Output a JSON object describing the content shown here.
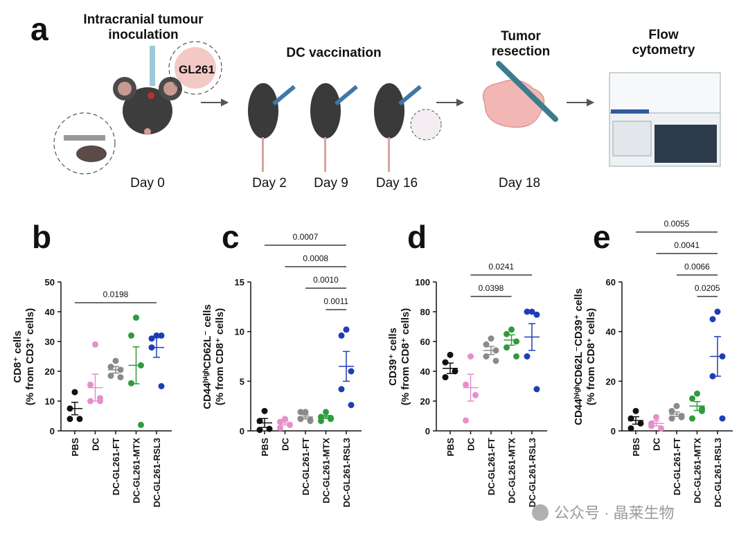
{
  "panel_a": {
    "letter": "a",
    "cell_line": "GL261",
    "steps": [
      {
        "title": [
          "Intracranial tumour",
          "inoculation"
        ],
        "days": [
          "Day 0"
        ]
      },
      {
        "title": [
          "DC vaccination"
        ],
        "days": [
          "Day 2",
          "Day 9",
          "Day 16"
        ]
      },
      {
        "title": [
          "Tumor",
          "resection"
        ],
        "days": [
          "Day 18"
        ]
      },
      {
        "title": [
          "Flow",
          "cytometry"
        ]
      }
    ]
  },
  "chart_data": [
    {
      "type": "scatter",
      "letter": "b",
      "ylabel": [
        "CD8⁺ cells",
        "(% from CD3⁺ cells)"
      ],
      "ylim": [
        0,
        50
      ],
      "yticks": [
        0,
        10,
        20,
        30,
        40,
        50
      ],
      "series": [
        {
          "name": "PBS",
          "color": "#111111",
          "values": [
            13,
            7.5,
            4,
            4
          ],
          "mean": 7.5,
          "sem": 2.1
        },
        {
          "name": "DC",
          "color": "#e68fca",
          "values": [
            29,
            15.5,
            11,
            10,
            10
          ],
          "mean": 14.5,
          "sem": 4.5
        },
        {
          "name": "DC-GL261-FT",
          "color": "#8a8a8a",
          "values": [
            23.5,
            21.5,
            20.5,
            18.5,
            18
          ],
          "mean": 20.5,
          "sem": 1.1
        },
        {
          "name": "DC-GL261-MTX",
          "color": "#2e9b3c",
          "values": [
            38,
            32,
            22,
            16,
            2
          ],
          "mean": 22,
          "sem": 6.2
        },
        {
          "name": "DC-GL261-RSL3",
          "color": "#1f3db5",
          "values": [
            32,
            31,
            32,
            28,
            15
          ],
          "mean": 28,
          "sem": 3.3
        }
      ],
      "comparisons": [
        {
          "label": "0.0198",
          "between": [
            "PBS",
            "DC-GL261-RSL3"
          ]
        }
      ]
    },
    {
      "type": "scatter",
      "letter": "c",
      "ylabel": [
        "CD44ʰⁱᵍʰCD62L⁻ cells",
        "(% from CD8⁺ cells)"
      ],
      "ylim": [
        0,
        15
      ],
      "yticks": [
        0,
        5,
        10,
        15
      ],
      "series": [
        {
          "name": "PBS",
          "color": "#111111",
          "values": [
            2,
            1,
            0.2,
            0.1
          ],
          "mean": 0.8,
          "sem": 0.45
        },
        {
          "name": "DC",
          "color": "#e68fca",
          "values": [
            1.2,
            0.9,
            0.6,
            0.3
          ],
          "mean": 0.8,
          "sem": 0.2
        },
        {
          "name": "DC-GL261-FT",
          "color": "#8a8a8a",
          "values": [
            1.9,
            1.9,
            1.1,
            1.2,
            1
          ],
          "mean": 1.4,
          "sem": 0.2
        },
        {
          "name": "DC-GL261-MTX",
          "color": "#2e9b3c",
          "values": [
            1.9,
            1.4,
            1.3,
            1,
            1.2
          ],
          "mean": 1.4,
          "sem": 0.15
        },
        {
          "name": "DC-GL261-RSL3",
          "color": "#1f3db5",
          "values": [
            10.2,
            9.6,
            6,
            4.2,
            2.6
          ],
          "mean": 6.5,
          "sem": 1.5
        }
      ],
      "comparisons": [
        {
          "label": "0.0007",
          "between": [
            "PBS",
            "DC-GL261-RSL3"
          ]
        },
        {
          "label": "0.0008",
          "between": [
            "DC",
            "DC-GL261-RSL3"
          ]
        },
        {
          "label": "0.0010",
          "between": [
            "DC-GL261-FT",
            "DC-GL261-RSL3"
          ]
        },
        {
          "label": "0.0011",
          "between": [
            "DC-GL261-MTX",
            "DC-GL261-RSL3"
          ]
        }
      ]
    },
    {
      "type": "scatter",
      "letter": "d",
      "ylabel": [
        "CD39⁺ cells",
        "(% from CD8⁺ cells)"
      ],
      "ylim": [
        0,
        100
      ],
      "yticks": [
        0,
        20,
        40,
        60,
        80,
        100
      ],
      "series": [
        {
          "name": "PBS",
          "color": "#111111",
          "values": [
            51,
            46,
            40,
            36
          ],
          "mean": 42,
          "sem": 3.5
        },
        {
          "name": "DC",
          "color": "#e68fca",
          "values": [
            50,
            31,
            24,
            7
          ],
          "mean": 29,
          "sem": 9
        },
        {
          "name": "DC-GL261-FT",
          "color": "#8a8a8a",
          "values": [
            62,
            58,
            54,
            50,
            47
          ],
          "mean": 54,
          "sem": 2.7
        },
        {
          "name": "DC-GL261-MTX",
          "color": "#2e9b3c",
          "values": [
            68,
            65,
            60,
            56,
            50
          ],
          "mean": 61,
          "sem": 3.5
        },
        {
          "name": "DC-GL261-RSL3",
          "color": "#1f3db5",
          "values": [
            80,
            80,
            78,
            50,
            28
          ],
          "mean": 63,
          "sem": 9
        }
      ],
      "comparisons": [
        {
          "label": "0.0241",
          "between": [
            "DC",
            "DC-GL261-RSL3"
          ]
        },
        {
          "label": "0.0398",
          "between": [
            "DC",
            "DC-GL261-MTX"
          ]
        }
      ]
    },
    {
      "type": "scatter",
      "letter": "e",
      "ylabel": [
        "CD44ʰⁱᵍʰCD62L⁻CD39⁺ cells",
        "(% from CD8⁺ cells)"
      ],
      "ylim": [
        0,
        60
      ],
      "yticks": [
        0,
        20,
        40,
        60
      ],
      "series": [
        {
          "name": "PBS",
          "color": "#111111",
          "values": [
            8,
            5,
            3,
            1
          ],
          "mean": 4.2,
          "sem": 1.5
        },
        {
          "name": "DC",
          "color": "#e68fca",
          "values": [
            5.5,
            3,
            1,
            2
          ],
          "mean": 3,
          "sem": 1
        },
        {
          "name": "DC-GL261-FT",
          "color": "#8a8a8a",
          "values": [
            10,
            8,
            5.5,
            5,
            6
          ],
          "mean": 6.7,
          "sem": 0.9
        },
        {
          "name": "DC-GL261-MTX",
          "color": "#2e9b3c",
          "values": [
            15,
            13,
            9,
            5,
            8
          ],
          "mean": 10,
          "sem": 1.8
        },
        {
          "name": "DC-GL261-RSL3",
          "color": "#1f3db5",
          "values": [
            48,
            45,
            30,
            22,
            5
          ],
          "mean": 30,
          "sem": 8
        }
      ],
      "comparisons": [
        {
          "label": "0.0055",
          "between": [
            "PBS",
            "DC-GL261-RSL3"
          ]
        },
        {
          "label": "0.0041",
          "between": [
            "DC",
            "DC-GL261-RSL3"
          ]
        },
        {
          "label": "0.0066",
          "between": [
            "DC-GL261-FT",
            "DC-GL261-RSL3"
          ]
        },
        {
          "label": "0.0205",
          "between": [
            "DC-GL261-MTX",
            "DC-GL261-RSL3"
          ]
        }
      ]
    }
  ],
  "watermark": "公众号 · 晶莱生物"
}
